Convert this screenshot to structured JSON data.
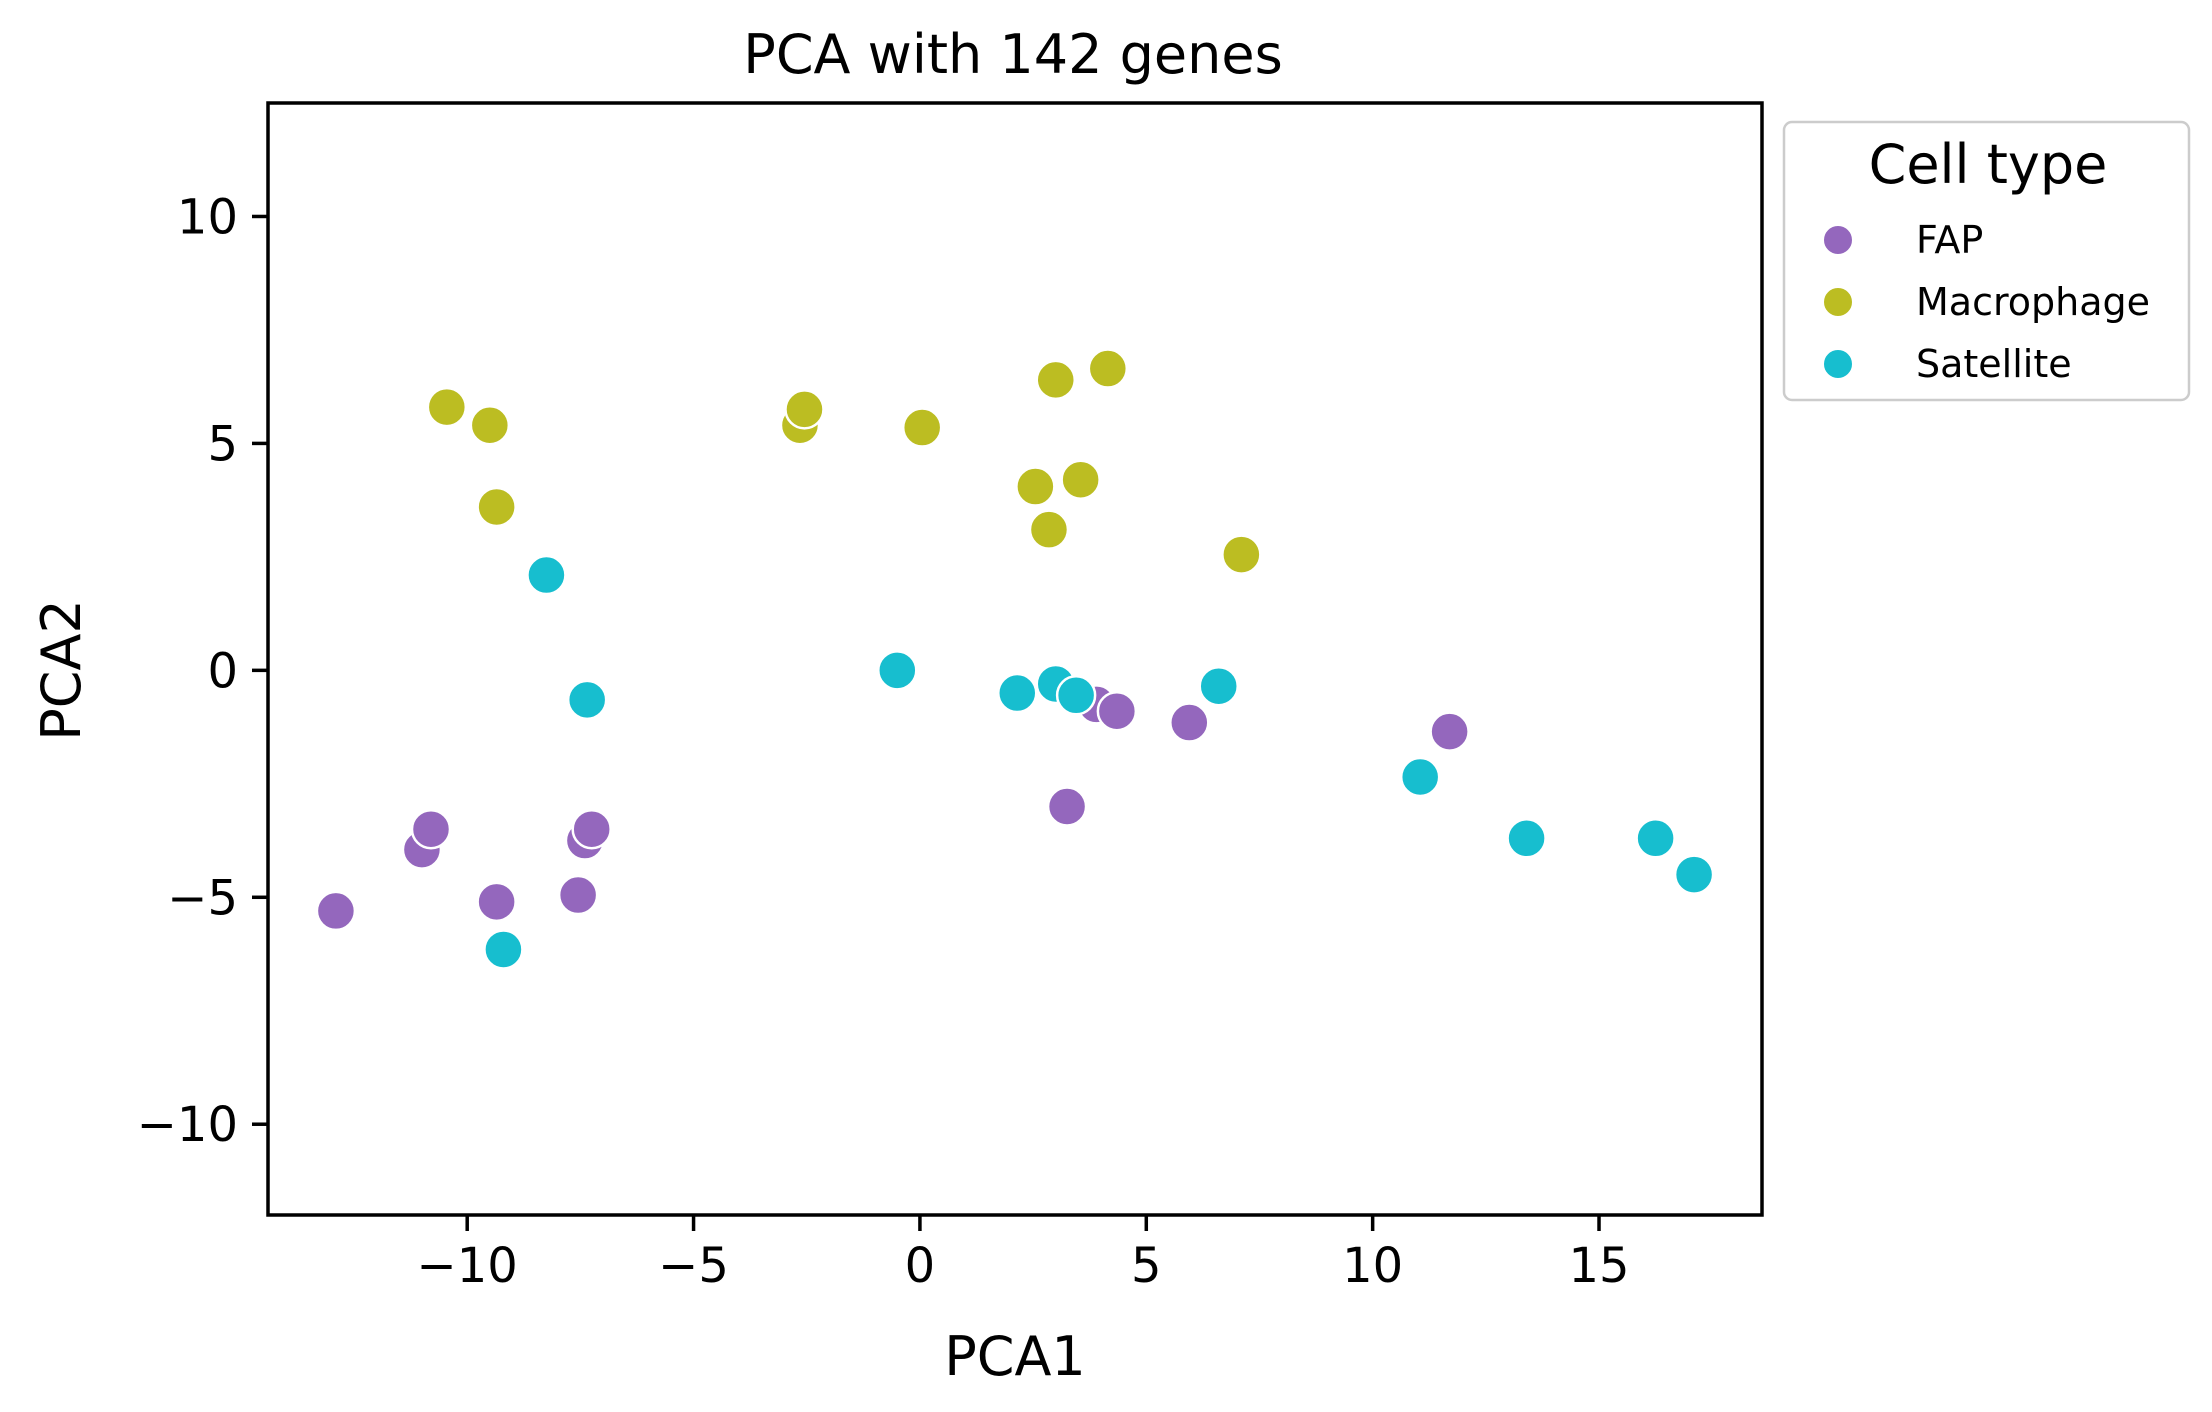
{
  "chart_data": {
    "type": "scatter",
    "title": "PCA with 142 genes",
    "xlabel": "PCA1",
    "ylabel": "PCA2",
    "xlim": [
      -14.4,
      18.6
    ],
    "ylim": [
      -12.0,
      12.5
    ],
    "xticks": [
      -10,
      -5,
      0,
      5,
      10,
      15
    ],
    "yticks": [
      -10,
      -5,
      0,
      5,
      10
    ],
    "xtick_labels": [
      "−10",
      "−5",
      "0",
      "5",
      "10",
      "15"
    ],
    "ytick_labels": [
      "−10",
      "−5",
      "0",
      "5",
      "10"
    ],
    "grid": false,
    "legend": {
      "title": "Cell type",
      "placement": "outside-upper-right"
    },
    "series": [
      {
        "name": "FAP",
        "color": "#9467bd",
        "points": [
          [
            -12.9,
            -5.3
          ],
          [
            -11.0,
            -3.95
          ],
          [
            -10.8,
            -3.5
          ],
          [
            -9.35,
            -5.1
          ],
          [
            -7.55,
            -4.95
          ],
          [
            -7.4,
            -3.75
          ],
          [
            -7.25,
            -3.5
          ],
          [
            3.25,
            -3.0
          ],
          [
            3.9,
            -0.75
          ],
          [
            4.35,
            -0.9
          ],
          [
            5.95,
            -1.15
          ],
          [
            11.7,
            -1.35
          ]
        ]
      },
      {
        "name": "Macrophage",
        "color": "#bcbd22",
        "points": [
          [
            -10.45,
            5.8
          ],
          [
            -9.5,
            5.4
          ],
          [
            -9.35,
            3.6
          ],
          [
            -2.65,
            5.4
          ],
          [
            -2.55,
            5.75
          ],
          [
            0.05,
            5.35
          ],
          [
            2.55,
            4.05
          ],
          [
            2.85,
            3.1
          ],
          [
            3.0,
            6.4
          ],
          [
            3.55,
            4.2
          ],
          [
            4.15,
            6.65
          ],
          [
            7.1,
            2.55
          ]
        ]
      },
      {
        "name": "Satellite",
        "color": "#17becf",
        "points": [
          [
            -8.25,
            2.1
          ],
          [
            -7.35,
            -0.65
          ],
          [
            -9.2,
            -6.15
          ],
          [
            -0.5,
            0.0
          ],
          [
            2.15,
            -0.5
          ],
          [
            3.0,
            -0.3
          ],
          [
            3.45,
            -0.55
          ],
          [
            6.6,
            -0.35
          ],
          [
            11.05,
            -2.35
          ],
          [
            13.4,
            -3.7
          ],
          [
            16.25,
            -3.7
          ],
          [
            17.1,
            -4.5
          ]
        ]
      }
    ]
  }
}
